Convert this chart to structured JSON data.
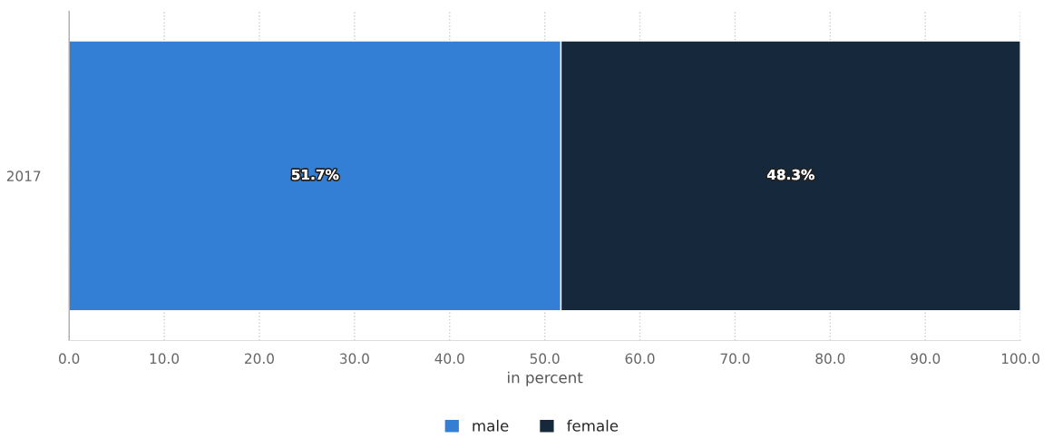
{
  "chart_data": {
    "type": "bar",
    "orientation": "horizontal",
    "stacked": true,
    "categories": [
      "2017"
    ],
    "series": [
      {
        "name": "male",
        "color": "#337fd6",
        "values": [
          51.7
        ],
        "value_labels": [
          "51.7%"
        ]
      },
      {
        "name": "female",
        "color": "#16283c",
        "values": [
          48.3
        ],
        "value_labels": [
          "48.3%"
        ]
      }
    ],
    "xlim": [
      0,
      100
    ],
    "xticks": [
      {
        "value": 0,
        "label": "0.0"
      },
      {
        "value": 10,
        "label": "10.0"
      },
      {
        "value": 20,
        "label": "20.0"
      },
      {
        "value": 30,
        "label": "30.0"
      },
      {
        "value": 40,
        "label": "40.0"
      },
      {
        "value": 50,
        "label": "50.0"
      },
      {
        "value": 60,
        "label": "60.0"
      },
      {
        "value": 70,
        "label": "70.0"
      },
      {
        "value": 80,
        "label": "80.0"
      },
      {
        "value": 90,
        "label": "90.0"
      },
      {
        "value": 100,
        "label": "100.0"
      }
    ],
    "xlabel": "in percent",
    "grid": "x",
    "legend": "bottom"
  }
}
